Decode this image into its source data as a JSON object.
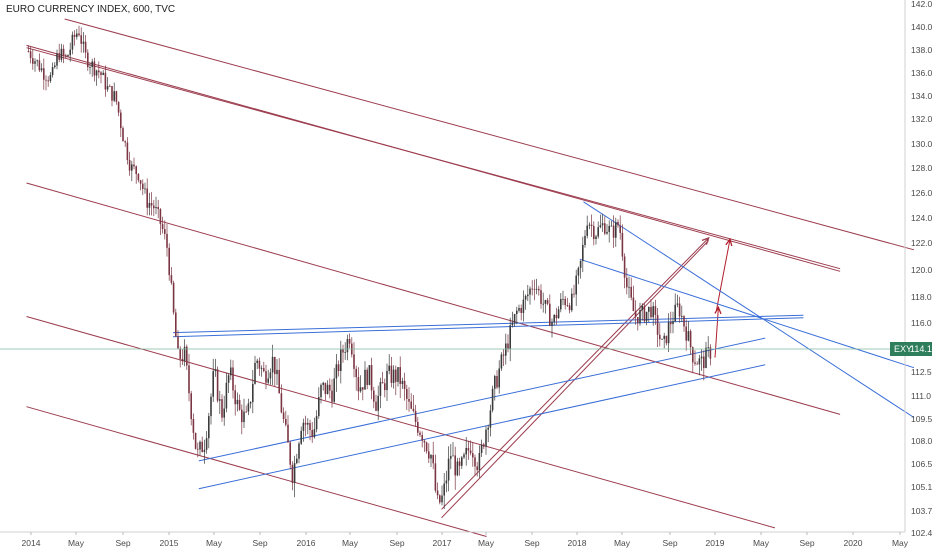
{
  "chart_data": {
    "type": "candlestick",
    "title": "EURO CURRENCY INDEX, 600, TVC",
    "x_ticks": [
      "2014",
      "May",
      "Sep",
      "2015",
      "May",
      "Sep",
      "2016",
      "May",
      "Sep",
      "2017",
      "May",
      "Sep",
      "2018",
      "May",
      "Sep",
      "2019",
      "May",
      "Sep",
      "2020",
      "May"
    ],
    "y_ticks": [
      "142.0",
      "140.0",
      "138.0",
      "136.0",
      "134.0",
      "132.0",
      "130.0",
      "128.0",
      "126.0",
      "124.0",
      "122.0",
      "120.0",
      "118.0",
      "116.0",
      "114.1",
      "112.5",
      "111.0",
      "109.5",
      "108.0",
      "106.5",
      "105.1",
      "103.7",
      "102.4"
    ],
    "ylim": [
      102.0,
      142.4
    ],
    "grid": false,
    "last_price": {
      "label": "EXY",
      "value": "114.1",
      "color": "#2e7d5b"
    },
    "series": [
      {
        "values": [
          [
            "2013-12-25",
            137.9
          ],
          [
            "2014-01-15",
            137.0
          ],
          [
            "2014-02-05",
            136.0
          ],
          [
            "2014-02-25",
            135.5
          ],
          [
            "2014-03-15",
            137.8
          ],
          [
            "2014-04-05",
            137.2
          ],
          [
            "2014-04-25",
            139.0
          ],
          [
            "2014-05-08",
            139.8
          ],
          [
            "2014-05-25",
            137.5
          ],
          [
            "2014-06-15",
            136.6
          ],
          [
            "2014-07-05",
            136.0
          ],
          [
            "2014-07-25",
            134.6
          ],
          [
            "2014-08-15",
            133.8
          ],
          [
            "2014-09-05",
            130.5
          ],
          [
            "2014-09-25",
            128.0
          ],
          [
            "2014-10-15",
            127.6
          ],
          [
            "2014-11-05",
            125.4
          ],
          [
            "2014-11-25",
            124.9
          ],
          [
            "2014-12-15",
            123.4
          ],
          [
            "2015-01-01",
            121.5
          ],
          [
            "2015-01-15",
            117.0
          ],
          [
            "2015-01-28",
            113.5
          ],
          [
            "2015-02-15",
            113.7
          ],
          [
            "2015-03-05",
            110.0
          ],
          [
            "2015-03-20",
            107.0
          ],
          [
            "2015-04-10",
            108.0
          ],
          [
            "2015-05-05",
            112.5
          ],
          [
            "2015-05-25",
            109.8
          ],
          [
            "2015-06-15",
            112.5
          ],
          [
            "2015-07-10",
            110.0
          ],
          [
            "2015-08-01",
            109.4
          ],
          [
            "2015-08-25",
            113.5
          ],
          [
            "2015-09-15",
            112.3
          ],
          [
            "2015-10-10",
            113.4
          ],
          [
            "2015-11-05",
            109.5
          ],
          [
            "2015-12-01",
            105.8
          ],
          [
            "2015-12-25",
            109.5
          ],
          [
            "2016-01-25",
            108.5
          ],
          [
            "2016-02-15",
            111.5
          ],
          [
            "2016-03-15",
            111.3
          ],
          [
            "2016-04-10",
            113.8
          ],
          [
            "2016-05-01",
            115.1
          ],
          [
            "2016-05-25",
            111.5
          ],
          [
            "2016-06-20",
            112.5
          ],
          [
            "2016-07-10",
            110.6
          ],
          [
            "2016-08-10",
            112.3
          ],
          [
            "2016-09-10",
            112.2
          ],
          [
            "2016-10-10",
            110.0
          ],
          [
            "2016-11-10",
            108.5
          ],
          [
            "2016-12-05",
            107.0
          ],
          [
            "2016-12-20",
            104.0
          ],
          [
            "2017-01-05",
            104.5
          ],
          [
            "2017-01-25",
            107.2
          ],
          [
            "2017-02-15",
            105.8
          ],
          [
            "2017-03-20",
            107.8
          ],
          [
            "2017-04-10",
            106.4
          ],
          [
            "2017-05-01",
            109.1
          ],
          [
            "2017-05-25",
            111.8
          ],
          [
            "2017-06-20",
            114.0
          ],
          [
            "2017-07-20",
            116.8
          ],
          [
            "2017-08-10",
            117.6
          ],
          [
            "2017-09-05",
            119.2
          ],
          [
            "2017-10-01",
            117.4
          ],
          [
            "2017-10-25",
            116.0
          ],
          [
            "2017-11-20",
            117.8
          ],
          [
            "2017-12-15",
            117.6
          ],
          [
            "2018-01-05",
            120.0
          ],
          [
            "2018-01-25",
            124.0
          ],
          [
            "2018-02-15",
            122.8
          ],
          [
            "2018-03-10",
            123.5
          ],
          [
            "2018-04-01",
            122.8
          ],
          [
            "2018-04-20",
            123.6
          ],
          [
            "2018-05-10",
            118.8
          ],
          [
            "2018-06-01",
            116.5
          ],
          [
            "2018-06-25",
            116.7
          ],
          [
            "2018-07-15",
            117.1
          ],
          [
            "2018-08-15",
            114.1
          ],
          [
            "2018-09-01",
            115.9
          ],
          [
            "2018-09-25",
            117.3
          ],
          [
            "2018-10-15",
            115.5
          ],
          [
            "2018-11-05",
            113.5
          ],
          [
            "2018-11-25",
            113.1
          ],
          [
            "2018-12-10",
            113.6
          ],
          [
            "2018-12-25",
            114.1
          ]
        ]
      }
    ],
    "trendlines": [
      {
        "color": "#9c3c4e",
        "from": [
          "2014-04-01",
          140.7
        ],
        "to": [
          "2020-06-15",
          121.5
        ]
      },
      {
        "color": "#9c3c4e",
        "from": [
          "2013-12-20",
          138.4
        ],
        "to": [
          "2019-12-01",
          119.9
        ]
      },
      {
        "color": "#9c3c4e",
        "from": [
          "2013-12-20",
          138.2
        ],
        "to": [
          "2019-12-01",
          120.1
        ]
      },
      {
        "color": "#9c3c4e",
        "from": [
          "2013-12-20",
          126.8
        ],
        "to": [
          "2019-12-01",
          109.8
        ]
      },
      {
        "color": "#9c3c4e",
        "from": [
          "2013-12-20",
          116.5
        ],
        "to": [
          "2019-06-10",
          102.7
        ]
      },
      {
        "color": "#9c3c4e",
        "from": [
          "2013-12-20",
          110.3
        ],
        "to": [
          "2017-05-01",
          102.2
        ]
      },
      {
        "color": "#9c3c4e",
        "from": [
          "2017-01-01",
          103.8
        ],
        "to": [
          "2018-12-15",
          122.4
        ]
      },
      {
        "color": "#9c3c4e",
        "from": [
          "2017-01-01",
          103.3
        ],
        "to": [
          "2018-12-15",
          122.2
        ]
      },
      {
        "color": "#b01e2c",
        "from": [
          "2019-01-01",
          113.5
        ],
        "to": [
          "2019-01-10",
          117.2
        ]
      },
      {
        "color": "#b01e2c",
        "from": [
          "2019-01-05",
          117.0
        ],
        "to": [
          "2019-02-10",
          122.3
        ]
      },
      {
        "color": "#3a6fd8",
        "from": [
          "2015-01-15",
          115.3
        ],
        "to": [
          "2019-08-25",
          116.6
        ]
      },
      {
        "color": "#3a6fd8",
        "from": [
          "2015-01-15",
          115.0
        ],
        "to": [
          "2019-08-25",
          116.4
        ]
      },
      {
        "color": "#3a6fd8",
        "from": [
          "2015-03-25",
          106.7
        ],
        "to": [
          "2019-05-15",
          114.9
        ]
      },
      {
        "color": "#3a6fd8",
        "from": [
          "2015-03-25",
          105.0
        ],
        "to": [
          "2019-05-15",
          113.0
        ]
      },
      {
        "color": "#3a6fd8",
        "from": [
          "2018-01-05",
          120.8
        ],
        "to": [
          "2020-06-15",
          112.8
        ]
      },
      {
        "color": "#3a6fd8",
        "from": [
          "2018-01-15",
          125.3
        ],
        "to": [
          "2020-06-15",
          109.6
        ]
      }
    ]
  }
}
